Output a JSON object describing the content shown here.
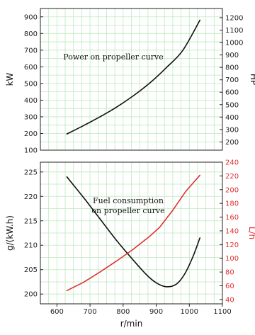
{
  "chart_data": [
    {
      "type": "line",
      "xlabel": "",
      "ylabel": "kW",
      "ylabel_right": "HP",
      "xlim": [
        550,
        1100
      ],
      "ylim": [
        100,
        950
      ],
      "ylim_right": [
        134,
        1274
      ],
      "yticks": [
        100,
        200,
        300,
        400,
        500,
        600,
        700,
        800,
        900
      ],
      "yticks_right": [
        200,
        300,
        400,
        500,
        600,
        700,
        800,
        900,
        1000,
        1100,
        1200
      ],
      "grid": true,
      "annotations": [
        "Power on propeller curve"
      ],
      "series": [
        {
          "color": "#111111",
          "x": [
            630,
            680,
            730,
            780,
            830,
            880,
            930,
            980,
            1032
          ],
          "y": [
            197,
            247,
            300,
            358,
            425,
            502,
            594,
            698,
            880
          ]
        }
      ]
    },
    {
      "type": "line",
      "xlabel": "r/min",
      "ylabel": "g/(kW.h)",
      "ylabel_right": "L/h",
      "xlim": [
        550,
        1100
      ],
      "xticks": [
        600,
        700,
        800,
        900,
        1000,
        1100
      ],
      "ylim": [
        198,
        227
      ],
      "ylim_right": [
        33.7,
        240
      ],
      "yticks": [
        200,
        205,
        210,
        215,
        220,
        225
      ],
      "yticks_right": [
        40,
        60,
        80,
        100,
        120,
        140,
        160,
        180,
        200,
        220,
        240
      ],
      "grid": true,
      "annotations": [
        "Fuel consumption",
        "on propeller curve"
      ],
      "series": [
        {
          "axis": "left",
          "color": "#111111",
          "x": [
            630,
            680,
            730,
            780,
            830,
            870,
            900,
            930,
            960,
            985,
            1010,
            1032
          ],
          "y": [
            224,
            219.8,
            215.4,
            211,
            207,
            204,
            202.3,
            201.5,
            202,
            204,
            207.5,
            211.5
          ]
        },
        {
          "axis": "right",
          "color": "#e03030",
          "x": [
            630,
            680,
            730,
            780,
            830,
            880,
            910,
            950,
            990,
            1032
          ],
          "y": [
            53,
            65,
            80,
            96,
            113,
            132,
            145,
            170,
            198,
            221
          ]
        }
      ]
    }
  ]
}
